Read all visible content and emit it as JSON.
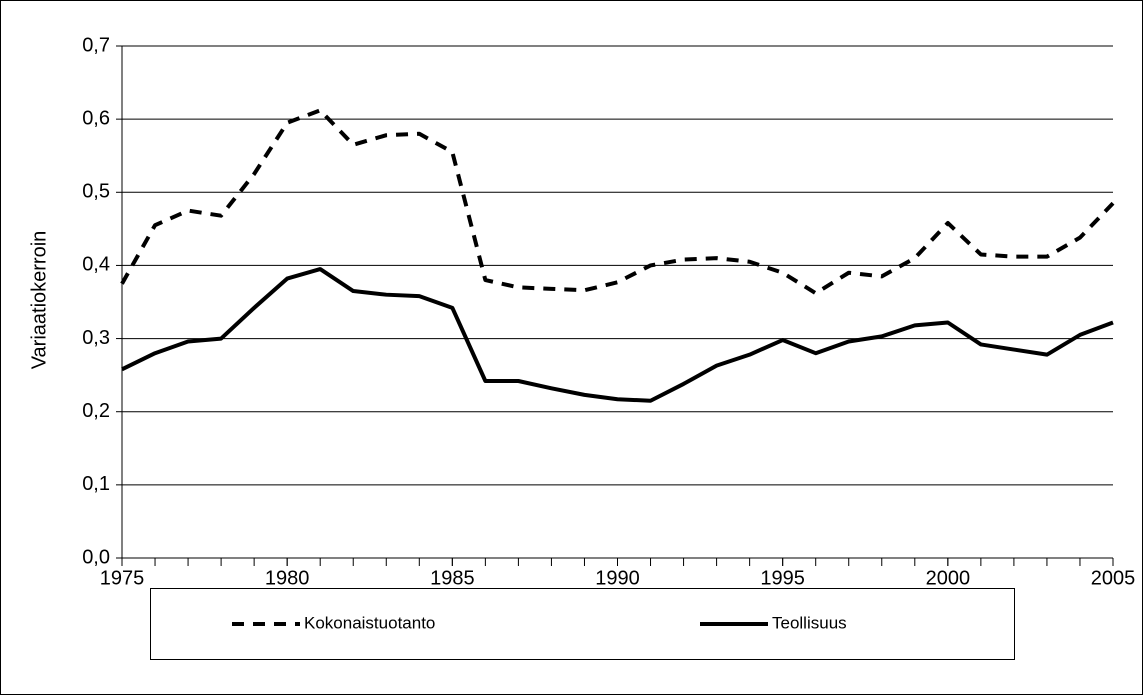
{
  "chart_data": {
    "type": "line",
    "y_label": "Variaatiokerroin",
    "x": [
      1975,
      1976,
      1977,
      1978,
      1979,
      1980,
      1981,
      1982,
      1983,
      1984,
      1985,
      1986,
      1987,
      1988,
      1989,
      1990,
      1991,
      1992,
      1993,
      1994,
      1995,
      1996,
      1997,
      1998,
      1999,
      2000,
      2001,
      2002,
      2003,
      2004,
      2005
    ],
    "series": [
      {
        "name": "Kokonaistuotanto",
        "color": "#000000",
        "dash": true,
        "values": [
          0.375,
          0.455,
          0.475,
          0.468,
          0.525,
          0.595,
          0.612,
          0.565,
          0.578,
          0.58,
          0.555,
          0.38,
          0.37,
          0.368,
          0.366,
          0.377,
          0.4,
          0.408,
          0.41,
          0.405,
          0.39,
          0.362,
          0.39,
          0.385,
          0.41,
          0.458,
          0.415,
          0.412,
          0.412,
          0.438,
          0.485
        ]
      },
      {
        "name": "Teollisuus",
        "color": "#000000",
        "dash": false,
        "values": [
          0.258,
          0.28,
          0.296,
          0.3,
          0.342,
          0.382,
          0.395,
          0.365,
          0.36,
          0.358,
          0.342,
          0.242,
          0.242,
          0.232,
          0.223,
          0.217,
          0.215,
          0.238,
          0.263,
          0.278,
          0.298,
          0.28,
          0.296,
          0.303,
          0.318,
          0.322,
          0.292,
          0.285,
          0.278,
          0.305,
          0.322
        ]
      }
    ],
    "xlim": [
      1975,
      2005
    ],
    "xticks": [
      1975,
      1980,
      1985,
      1990,
      1995,
      2000,
      2005
    ],
    "ylim": [
      0,
      0.7
    ],
    "yticks": [
      {
        "value": 0,
        "label": "0,0"
      },
      {
        "value": 0.1,
        "label": "0,1"
      },
      {
        "value": 0.2,
        "label": "0,2"
      },
      {
        "value": 0.3,
        "label": "0,3"
      },
      {
        "value": 0.4,
        "label": "0,4"
      },
      {
        "value": 0.5,
        "label": "0,5"
      },
      {
        "value": 0.6,
        "label": "0,6"
      },
      {
        "value": 0.7,
        "label": "0,7"
      }
    ],
    "grid": true,
    "legend": "bottom"
  }
}
